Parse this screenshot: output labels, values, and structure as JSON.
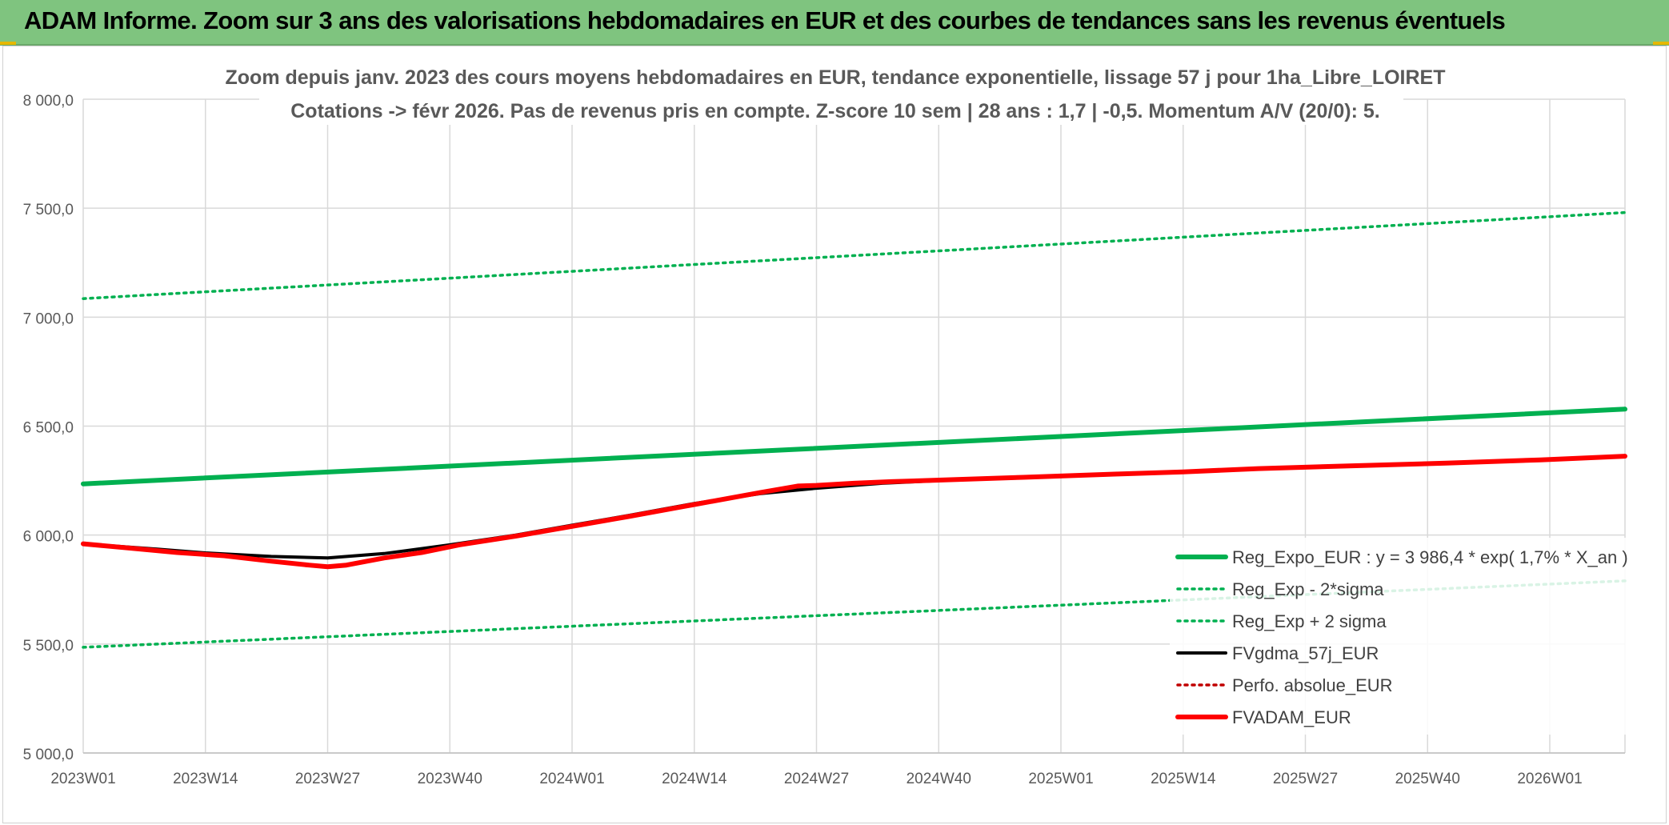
{
  "header": {
    "title": "ADAM Informe. Zoom sur 3 ans des valorisations hebdomadaires en EUR et des courbes de tendances sans les revenus éventuels"
  },
  "colors": {
    "banner": "#7fc47f",
    "reg_expo": "#00b050",
    "fvadam": "#ff0000",
    "fvgdma": "#000000",
    "grid": "#d9d9d9"
  },
  "chart_data": {
    "type": "line",
    "title_line1": "Zoom depuis janv. 2023 des cours moyens hebdomadaires en EUR, tendance exponentielle, lissage 57 j pour 1ha_Libre_LOIRET",
    "title_line2": "Cotations -> févr 2026. Pas de revenus pris en compte. Z-score 10 sem | 28 ans : 1,7 | -0,5. Momentum A/V (20/0): 5.",
    "x_ticks": [
      "2023W01",
      "2023W14",
      "2023W27",
      "2023W40",
      "2024W01",
      "2024W14",
      "2024W27",
      "2024W40",
      "2025W01",
      "2025W14",
      "2025W27",
      "2025W40",
      "2026W01"
    ],
    "x_tick_index": [
      0,
      13,
      26,
      39,
      52,
      65,
      78,
      91,
      104,
      117,
      130,
      143,
      156
    ],
    "x_range": [
      0,
      164
    ],
    "y_ticks": [
      "8 000,0",
      "7 500,0",
      "7 000,0",
      "6 500,0",
      "6 000,0",
      "5 500,0",
      "5 000,0"
    ],
    "y_tick_values": [
      8000,
      7500,
      7000,
      6500,
      6000,
      5500,
      5000
    ],
    "ylim": [
      5000,
      8000
    ],
    "grid": true,
    "legend_position": "bottom-right",
    "series": [
      {
        "name": "Reg_Expo_EUR : y = 3 986,4 * exp( 1,7% *  X_an )",
        "style": "solid-thick",
        "color": "#00b050",
        "x": [
          0,
          164
        ],
        "values": [
          6235,
          6578
        ]
      },
      {
        "name": "Reg_Exp - 2*sigma",
        "style": "dotted",
        "color": "#00b050",
        "x": [
          0,
          164
        ],
        "values": [
          5485,
          5790
        ]
      },
      {
        "name": "Reg_Exp + 2 sigma",
        "style": "dotted",
        "color": "#00b050",
        "x": [
          0,
          164
        ],
        "values": [
          7085,
          7480
        ]
      },
      {
        "name": "FVgdma_57j_EUR",
        "style": "solid",
        "color": "#000000",
        "x": [
          0,
          8,
          13,
          20,
          26,
          32,
          39,
          46,
          52,
          58,
          65,
          72,
          78,
          85,
          91,
          100,
          110,
          117,
          125,
          135,
          145,
          155,
          164
        ],
        "values": [
          5960,
          5935,
          5918,
          5902,
          5895,
          5915,
          5955,
          6000,
          6045,
          6090,
          6145,
          6190,
          6215,
          6238,
          6250,
          6265,
          6280,
          6290,
          6305,
          6318,
          6330,
          6345,
          6362
        ]
      },
      {
        "name": "Perfo. absolue_EUR",
        "style": "dotted",
        "color": "#c00000",
        "x": [],
        "values": []
      },
      {
        "name": "FVADAM_EUR",
        "style": "solid-thick",
        "color": "#ff0000",
        "x": [
          0,
          5,
          10,
          15,
          20,
          24,
          26,
          28,
          32,
          36,
          40,
          46,
          52,
          58,
          65,
          72,
          76,
          78,
          82,
          86,
          91,
          100,
          110,
          117,
          125,
          135,
          145,
          155,
          164
        ],
        "values": [
          5960,
          5940,
          5920,
          5905,
          5880,
          5862,
          5855,
          5862,
          5895,
          5920,
          5955,
          5995,
          6040,
          6085,
          6140,
          6195,
          6225,
          6228,
          6238,
          6245,
          6252,
          6265,
          6280,
          6290,
          6305,
          6318,
          6330,
          6345,
          6362
        ]
      }
    ]
  }
}
